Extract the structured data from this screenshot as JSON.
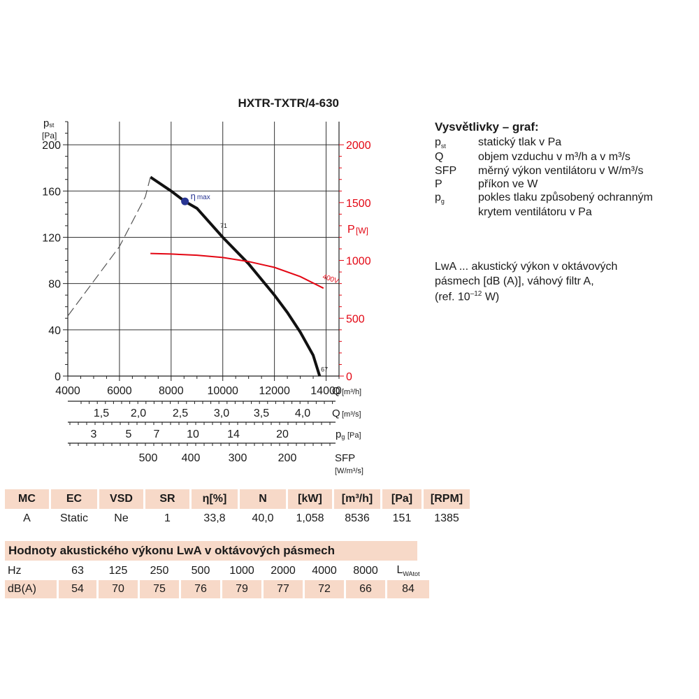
{
  "chart_data": {
    "type": "line",
    "title": "HXTR-TXTR/4-630",
    "y_left": {
      "label": "pst",
      "unit": "[Pa]",
      "range": [
        0,
        220
      ],
      "ticks": [
        0,
        40,
        80,
        120,
        160,
        200
      ]
    },
    "y_right": {
      "label": "P",
      "unit": "[W]",
      "range": [
        0,
        2200
      ],
      "ticks": [
        0,
        500,
        1000,
        1500,
        2000
      ]
    },
    "x_axes": [
      {
        "label": "Q",
        "unit": "[m³/h]",
        "range": [
          4000,
          14500
        ],
        "ticks": [
          "4000",
          "6000",
          "8000",
          "10000",
          "12000",
          "14000"
        ]
      },
      {
        "label": "Q",
        "unit": "[m³/s]",
        "ticks": [
          "1,5",
          "2,0",
          "2,5",
          "3,0",
          "3,5",
          "4,0"
        ]
      },
      {
        "label": "pg",
        "unit": "[Pa]",
        "ticks": [
          "3",
          "5",
          "7",
          "10",
          "14",
          "20"
        ]
      },
      {
        "label": "SFP",
        "unit": "[W/m³/s]",
        "ticks": [
          "500",
          "400",
          "300",
          "200"
        ]
      }
    ],
    "grid": true,
    "series": [
      {
        "id": "pst",
        "axis": "left",
        "color": "#111111",
        "style": "solid",
        "x": [
          7200,
          8000,
          8536,
          9000,
          10000,
          11000,
          12000,
          12500,
          13000,
          13500,
          13750
        ],
        "y": [
          172,
          160,
          151,
          145,
          120,
          97,
          70,
          55,
          38,
          18,
          0
        ]
      },
      {
        "id": "pst-unstable",
        "axis": "left",
        "color": "#555555",
        "style": "dashed",
        "x": [
          4000,
          5000,
          6000,
          7000,
          7200
        ],
        "y": [
          52,
          82,
          112,
          155,
          172
        ]
      },
      {
        "id": "power",
        "axis": "right",
        "color": "#e30613",
        "style": "solid",
        "x": [
          7200,
          8000,
          9000,
          10000,
          11000,
          12000,
          13000,
          13900
        ],
        "y": [
          1060,
          1055,
          1045,
          1025,
          990,
          940,
          860,
          760
        ]
      }
    ],
    "annotations": [
      {
        "text": "η",
        "sub": "max",
        "x": 8536,
        "y": 151,
        "marker": "dot",
        "color": "#283593"
      },
      {
        "text": "71",
        "x": 9900,
        "y": 128
      },
      {
        "text": "67",
        "x": 13800,
        "y": 4
      },
      {
        "text": "400V",
        "x": 13200,
        "y": 820,
        "color": "#e30613"
      }
    ]
  },
  "legend": {
    "title": "Vysvětlivky – graf:",
    "items": [
      {
        "sym": "p",
        "sub": "st",
        "text": "statický tlak v Pa"
      },
      {
        "sym": "Q",
        "text": "objem vzduchu v m³/h a v m³/s"
      },
      {
        "sym": "SFP",
        "text": "měrný výkon ventilátoru v W/m³/s"
      },
      {
        "sym": "P",
        "text": "příkon ve W"
      },
      {
        "sym": "p",
        "sub": "g",
        "text": "pokles tlaku způsobený ochranným",
        "cont": "krytem ventilátoru v Pa"
      }
    ]
  },
  "lwa_note": {
    "line1": "LwA ... akustický výkon v oktávových",
    "line2": "pásmech [dB (A)],  váhový filtr A,",
    "line3_pre": "(ref. 10",
    "line3_sup": "–12",
    "line3_post": " W)"
  },
  "spec_table": {
    "headers": [
      "MC",
      "EC",
      "VSD",
      "SR",
      "η[%]",
      "N",
      "[kW]",
      "[m³/h]",
      "[Pa]",
      "[RPM]"
    ],
    "values": [
      "A",
      "Static",
      "Ne",
      "1",
      "33,8",
      "40,0",
      "1,058",
      "8536",
      "151",
      "1385"
    ]
  },
  "acoustic": {
    "title": "Hodnoty akustického výkonu LwA v oktávových pásmech",
    "hz_label": "Hz",
    "hz": [
      "63",
      "125",
      "250",
      "500",
      "1000",
      "2000",
      "4000",
      "8000"
    ],
    "total_label": "L",
    "total_sub": "WAtot",
    "db_label": "dB(A)",
    "db": [
      "54",
      "70",
      "75",
      "76",
      "79",
      "77",
      "72",
      "66",
      "84"
    ]
  }
}
